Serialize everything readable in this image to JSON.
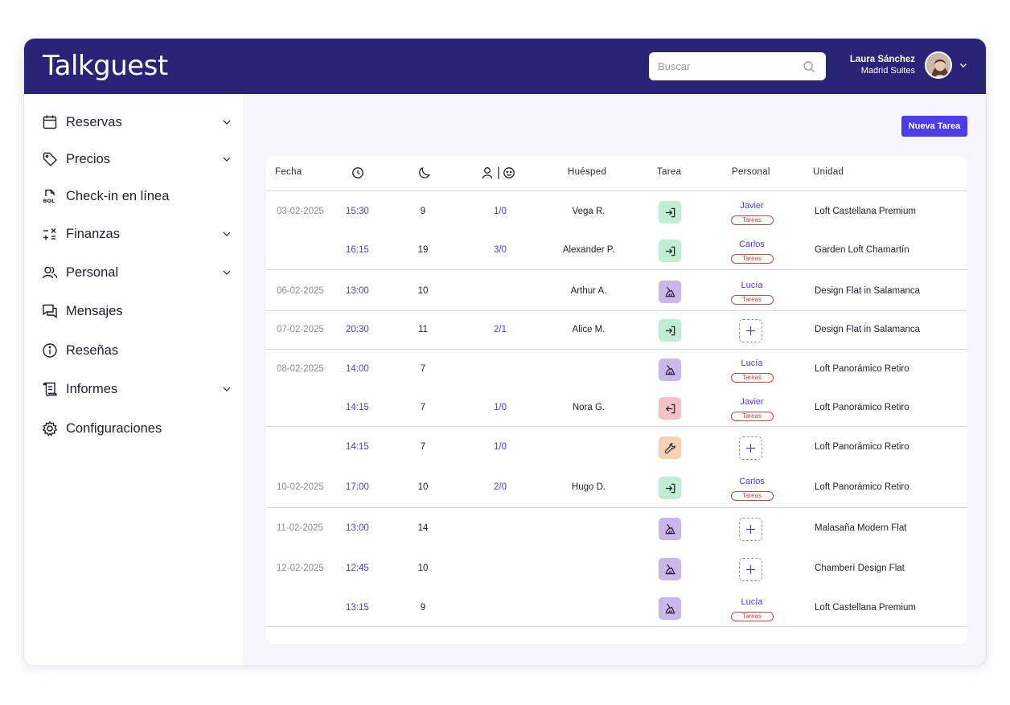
{
  "app": {
    "logo": "Talkguest"
  },
  "header": {
    "search_placeholder": "Buscar",
    "user_name": "Laura Sánchez",
    "user_org": "Madrid Suites"
  },
  "sidebar": {
    "items": [
      {
        "label": "Reservas",
        "icon": "calendar-icon",
        "has_chevron": true
      },
      {
        "label": "Precios",
        "icon": "tag-icon",
        "has_chevron": true
      },
      {
        "label": "Check-in en línea",
        "icon": "bol-document-icon",
        "has_chevron": false
      },
      {
        "label": "Finanzas",
        "icon": "calculator-icon",
        "has_chevron": true
      },
      {
        "label": "Personal",
        "icon": "users-icon",
        "has_chevron": true
      },
      {
        "label": "Mensajes",
        "icon": "chat-icon",
        "has_chevron": false
      },
      {
        "label": "Reseñas",
        "icon": "info-icon",
        "has_chevron": false
      },
      {
        "label": "Informes",
        "icon": "scroll-icon",
        "has_chevron": true
      },
      {
        "label": "Configuraciones",
        "icon": "gear-icon",
        "has_chevron": false
      }
    ]
  },
  "toolbar": {
    "new_task_label": "Nueva Tarea"
  },
  "table": {
    "columns": {
      "fecha": "Fecha",
      "time_icon": "clock-icon",
      "nights_icon": "moon-icon",
      "guests_icon": "adult-child-icon",
      "huesped": "Huésped",
      "tarea": "Tarea",
      "personal": "Personal",
      "unidad": "Unidad"
    },
    "rows": [
      {
        "date": "03-02-2025",
        "time": "15:30",
        "nights": "9",
        "guests": "1/0",
        "guest": "Vega R.",
        "task": "checkin",
        "staff": "Javier",
        "staff_tag": "Tareas",
        "unit": "Loft Castellana Premium"
      },
      {
        "date": "",
        "time": "16:15",
        "nights": "19",
        "guests": "3/0",
        "guest": "Alexander P.",
        "task": "checkin",
        "staff": "Carlos",
        "staff_tag": "Tareas",
        "unit": "Garden Loft Chamartín"
      },
      {
        "date": "06-02-2025",
        "time": "13:00",
        "nights": "10",
        "guests": "",
        "guest": "Arthur A.",
        "task": "cleaning",
        "staff": "Lucía",
        "staff_tag": "Tareas",
        "unit": "Design Flat in Salamanca"
      },
      {
        "date": "07-02-2025",
        "time": "20:30",
        "nights": "11",
        "guests": "2/1",
        "guest": "Alice M.",
        "task": "checkin",
        "staff": "",
        "staff_tag": "",
        "unit": "Design Flat in Salamanca"
      },
      {
        "date": "08-02-2025",
        "time": "14:00",
        "nights": "7",
        "guests": "",
        "guest": "",
        "task": "cleaning",
        "staff": "Lucía",
        "staff_tag": "Tareas",
        "unit": "Loft Panorámico Retiro"
      },
      {
        "date": "",
        "time": "14:15",
        "nights": "7",
        "guests": "1/0",
        "guest": "Nora G.",
        "task": "checkout",
        "staff": "Javier",
        "staff_tag": "Tareas",
        "unit": "Loft Panorámico Retiro"
      },
      {
        "date": "",
        "time": "14:15",
        "nights": "7",
        "guests": "1/0",
        "guest": "",
        "task": "maintenance",
        "staff": "",
        "staff_tag": "",
        "unit": "Loft Panorámico Retiro"
      },
      {
        "date": "10-02-2025",
        "time": "17:00",
        "nights": "10",
        "guests": "2/0",
        "guest": "Hugo D.",
        "task": "checkin",
        "staff": "Carlos",
        "staff_tag": "Tareas",
        "unit": "Loft Panorámico Retiro"
      },
      {
        "date": "11-02-2025",
        "time": "13:00",
        "nights": "14",
        "guests": "",
        "guest": "",
        "task": "cleaning",
        "staff": "",
        "staff_tag": "",
        "unit": "Malasaña Modern Flat"
      },
      {
        "date": "12-02-2025",
        "time": "12:45",
        "nights": "10",
        "guests": "",
        "guest": "",
        "task": "cleaning",
        "staff": "",
        "staff_tag": "",
        "unit": "Chamberí Design Flat"
      },
      {
        "date": "",
        "time": "13:15",
        "nights": "9",
        "guests": "",
        "guest": "",
        "task": "cleaning",
        "staff": "Lucía",
        "staff_tag": "Tareas",
        "unit": "Loft Castellana Premium"
      }
    ]
  },
  "colors": {
    "header": "#2a2478",
    "accent": "#4c3be6",
    "checkin": "#bfeed2",
    "checkout": "#f6c1c4",
    "cleaning": "#c9b6ea",
    "maintenance": "#f6d2b4"
  }
}
